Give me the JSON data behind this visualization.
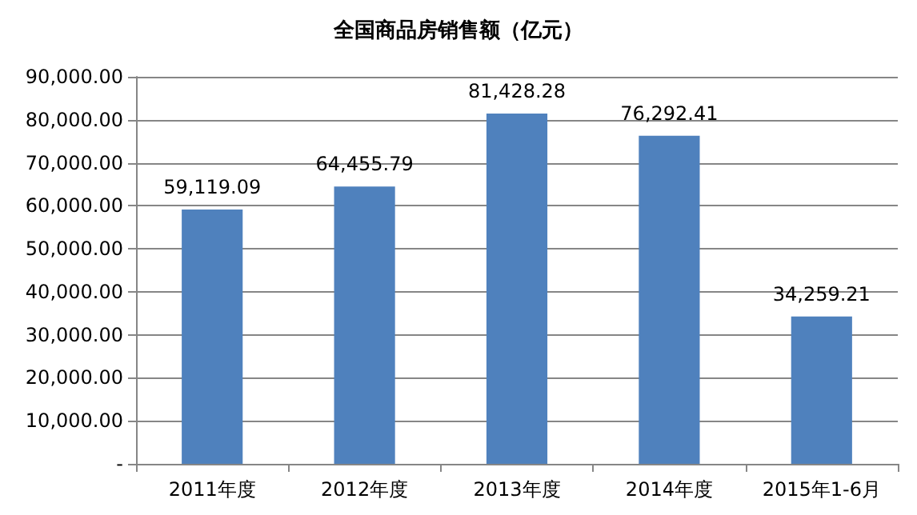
{
  "chart_data": {
    "type": "bar",
    "title": "全国商品房销售额（亿元）",
    "categories": [
      "2011年度",
      "2012年度",
      "2013年度",
      "2014年度",
      "2015年1-6月"
    ],
    "values": [
      59119.09,
      64455.79,
      81428.28,
      76292.41,
      34259.21
    ],
    "value_labels": [
      "59,119.09",
      "64,455.79",
      "81,428.28",
      "76,292.41",
      "34,259.21"
    ],
    "color": "#4f81bd",
    "ylim": [
      0,
      90000
    ],
    "yticks": [
      {
        "value": 0,
        "label": "-"
      },
      {
        "value": 10000,
        "label": "10,000.00"
      },
      {
        "value": 20000,
        "label": "20,000.00"
      },
      {
        "value": 30000,
        "label": "30,000.00"
      },
      {
        "value": 40000,
        "label": "40,000.00"
      },
      {
        "value": 50000,
        "label": "50,000.00"
      },
      {
        "value": 60000,
        "label": "60,000.00"
      },
      {
        "value": 70000,
        "label": "70,000.00"
      },
      {
        "value": 80000,
        "label": "80,000.00"
      },
      {
        "value": 90000,
        "label": "90,000.00"
      }
    ],
    "grid": "y"
  }
}
